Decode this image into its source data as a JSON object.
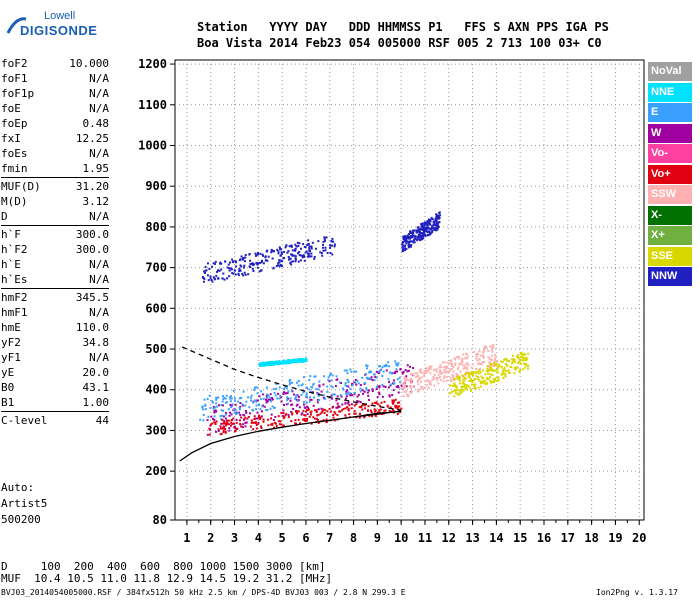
{
  "logo": {
    "line1": "Lowell",
    "line2": "DIGISONDE"
  },
  "header": {
    "row1": "Station   YYYY DAY   DDD HHMMSS P1   FFS S AXN PPS IGA PS",
    "row2": "Boa Vista 2014 Feb23 054 005000 RSF 005 2 713 100 03+ C0"
  },
  "params": [
    [
      {
        "k": "foF2",
        "v": "10.000"
      },
      {
        "k": "foF1",
        "v": "N/A"
      },
      {
        "k": "foF1p",
        "v": "N/A"
      },
      {
        "k": "foE",
        "v": "N/A"
      },
      {
        "k": "foEp",
        "v": "0.48"
      },
      {
        "k": "fxI",
        "v": "12.25"
      },
      {
        "k": "foEs",
        "v": "N/A"
      },
      {
        "k": "fmin",
        "v": "1.95"
      }
    ],
    [
      {
        "k": "MUF(D)",
        "v": "31.20"
      },
      {
        "k": "M(D)",
        "v": "3.12"
      },
      {
        "k": "D",
        "v": "N/A"
      }
    ],
    [
      {
        "k": "h`F",
        "v": "300.0"
      },
      {
        "k": "h`F2",
        "v": "300.0"
      },
      {
        "k": "h`E",
        "v": "N/A"
      },
      {
        "k": "h`Es",
        "v": "N/A"
      }
    ],
    [
      {
        "k": "hmF2",
        "v": "345.5"
      },
      {
        "k": "hmF1",
        "v": "N/A"
      },
      {
        "k": "hmE",
        "v": "110.0"
      },
      {
        "k": "yF2",
        "v": "34.8"
      },
      {
        "k": "yF1",
        "v": "N/A"
      },
      {
        "k": "yE",
        "v": "20.0"
      },
      {
        "k": "B0",
        "v": "43.1"
      },
      {
        "k": "B1",
        "v": "1.00"
      }
    ],
    [
      {
        "k": "C-level",
        "v": "44"
      }
    ]
  ],
  "autoscale": {
    "line1": "Auto:",
    "line2": "Artist5",
    "line3": "500200"
  },
  "legend": [
    {
      "label": "NoVal",
      "color": "#a0a0a0"
    },
    {
      "label": "NNE",
      "color": "#00e0ff"
    },
    {
      "label": "E",
      "color": "#3aa0ff"
    },
    {
      "label": "W",
      "color": "#a000a0"
    },
    {
      "label": "Vo-",
      "color": "#ff40a0"
    },
    {
      "label": "Vo+",
      "color": "#e00010"
    },
    {
      "label": "SSW",
      "color": "#ffb0b0"
    },
    {
      "label": "X-",
      "color": "#007000"
    },
    {
      "label": "X+",
      "color": "#70b040"
    },
    {
      "label": "SSE",
      "color": "#d8d800"
    },
    {
      "label": "NNW",
      "color": "#2020c0"
    }
  ],
  "bottom": {
    "d_row": "D     100  200  400  600  800 1000 1500 3000 [km]",
    "muf_row": "MUF  10.4 10.5 11.0 11.8 12.9 14.5 19.2 31.2 [MHz]"
  },
  "footer": {
    "left": "BVJ03_2014054005000.RSF / 384fx512h 50 kHz 2.5 km / DPS-4D BVJ03 003 / 2.8 N 299.3 E",
    "right": "Ion2Png v. 1.3.17"
  },
  "chart_data": {
    "type": "scatter",
    "title": "",
    "xlabel": "",
    "ylabel": "",
    "xlim": [
      0.5,
      20.2
    ],
    "ylim": [
      80,
      1210
    ],
    "xticks": [
      1,
      2,
      3,
      4,
      5,
      6,
      7,
      8,
      9,
      10,
      11,
      12,
      13,
      14,
      15,
      16,
      17,
      18,
      19,
      20
    ],
    "yticks": [
      80,
      200,
      300,
      400,
      500,
      600,
      700,
      800,
      900,
      1000,
      1100,
      1200
    ],
    "grid": true,
    "legend_position": "right",
    "traces": [
      {
        "name": "profile",
        "style": "solid",
        "x": [
          0.7,
          1.2,
          2.0,
          3.0,
          4.0,
          5.0,
          6.0,
          7.0,
          8.0,
          9.0,
          9.5,
          10.0
        ],
        "y": [
          225,
          245,
          268,
          285,
          298,
          308,
          317,
          325,
          333,
          340,
          344,
          347
        ]
      },
      {
        "name": "profile-segment",
        "style": "solid",
        "x": [
          8.0,
          9.0,
          9.7,
          10.0
        ],
        "y": [
          333,
          342,
          345,
          348
        ]
      },
      {
        "name": "profile-upper",
        "style": "dashed",
        "x": [
          0.8,
          2.0,
          3.0,
          4.0,
          5.0,
          6.0,
          7.0,
          8.0,
          9.0,
          10.0
        ],
        "y": [
          505,
          475,
          450,
          430,
          412,
          396,
          382,
          370,
          359,
          350
        ]
      }
    ],
    "echo_regions": [
      {
        "series": "NNW",
        "x": [
          1.6,
          7.2
        ],
        "y": [
          660,
          785
        ]
      },
      {
        "series": "NNW",
        "x": [
          10.0,
          11.6
        ],
        "y": [
          740,
          840
        ]
      },
      {
        "series": "W",
        "x": [
          1.8,
          10.5
        ],
        "y": [
          290,
          470
        ]
      },
      {
        "series": "E",
        "x": [
          1.5,
          10.0
        ],
        "y": [
          320,
          480
        ]
      },
      {
        "series": "Vo+",
        "x": [
          1.9,
          10.0
        ],
        "y": [
          290,
          380
        ]
      },
      {
        "series": "SSW",
        "x": [
          10.0,
          14.0
        ],
        "y": [
          380,
          520
        ]
      },
      {
        "series": "SSE",
        "x": [
          12.0,
          15.3
        ],
        "y": [
          380,
          500
        ]
      },
      {
        "series": "NNE",
        "x": [
          4.0,
          6.0
        ],
        "y": [
          460,
          480
        ]
      }
    ]
  }
}
